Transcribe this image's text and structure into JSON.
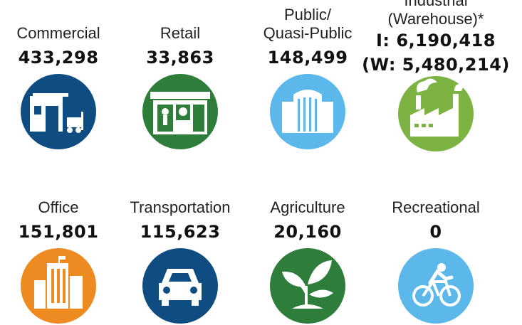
{
  "items": [
    {
      "label_lines": [
        "Commercial"
      ],
      "value_lines": [
        "433,298"
      ],
      "color": "#0f4c81"
    },
    {
      "label_lines": [
        "Retail"
      ],
      "value_lines": [
        "33,863"
      ],
      "color": "#2f7d3b"
    },
    {
      "label_lines": [
        "Public/",
        "Quasi-Public"
      ],
      "value_lines": [
        "148,499"
      ],
      "color": "#5cb7ea"
    },
    {
      "label_lines": [
        "Industrial",
        "(Warehouse)*"
      ],
      "value_lines": [
        "I: 6,190,418",
        "(W: 5,480,214)"
      ],
      "color": "#7cb342"
    },
    {
      "label_lines": [
        "Office"
      ],
      "value_lines": [
        "151,801"
      ],
      "color": "#ee8a22"
    },
    {
      "label_lines": [
        "Transportation"
      ],
      "value_lines": [
        "115,623"
      ],
      "color": "#0f4c81"
    },
    {
      "label_lines": [
        "Agriculture"
      ],
      "value_lines": [
        "20,160"
      ],
      "color": "#2f7d3b"
    },
    {
      "label_lines": [
        "Recreational"
      ],
      "value_lines": [
        "0"
      ],
      "color": "#5cb7ea"
    }
  ]
}
